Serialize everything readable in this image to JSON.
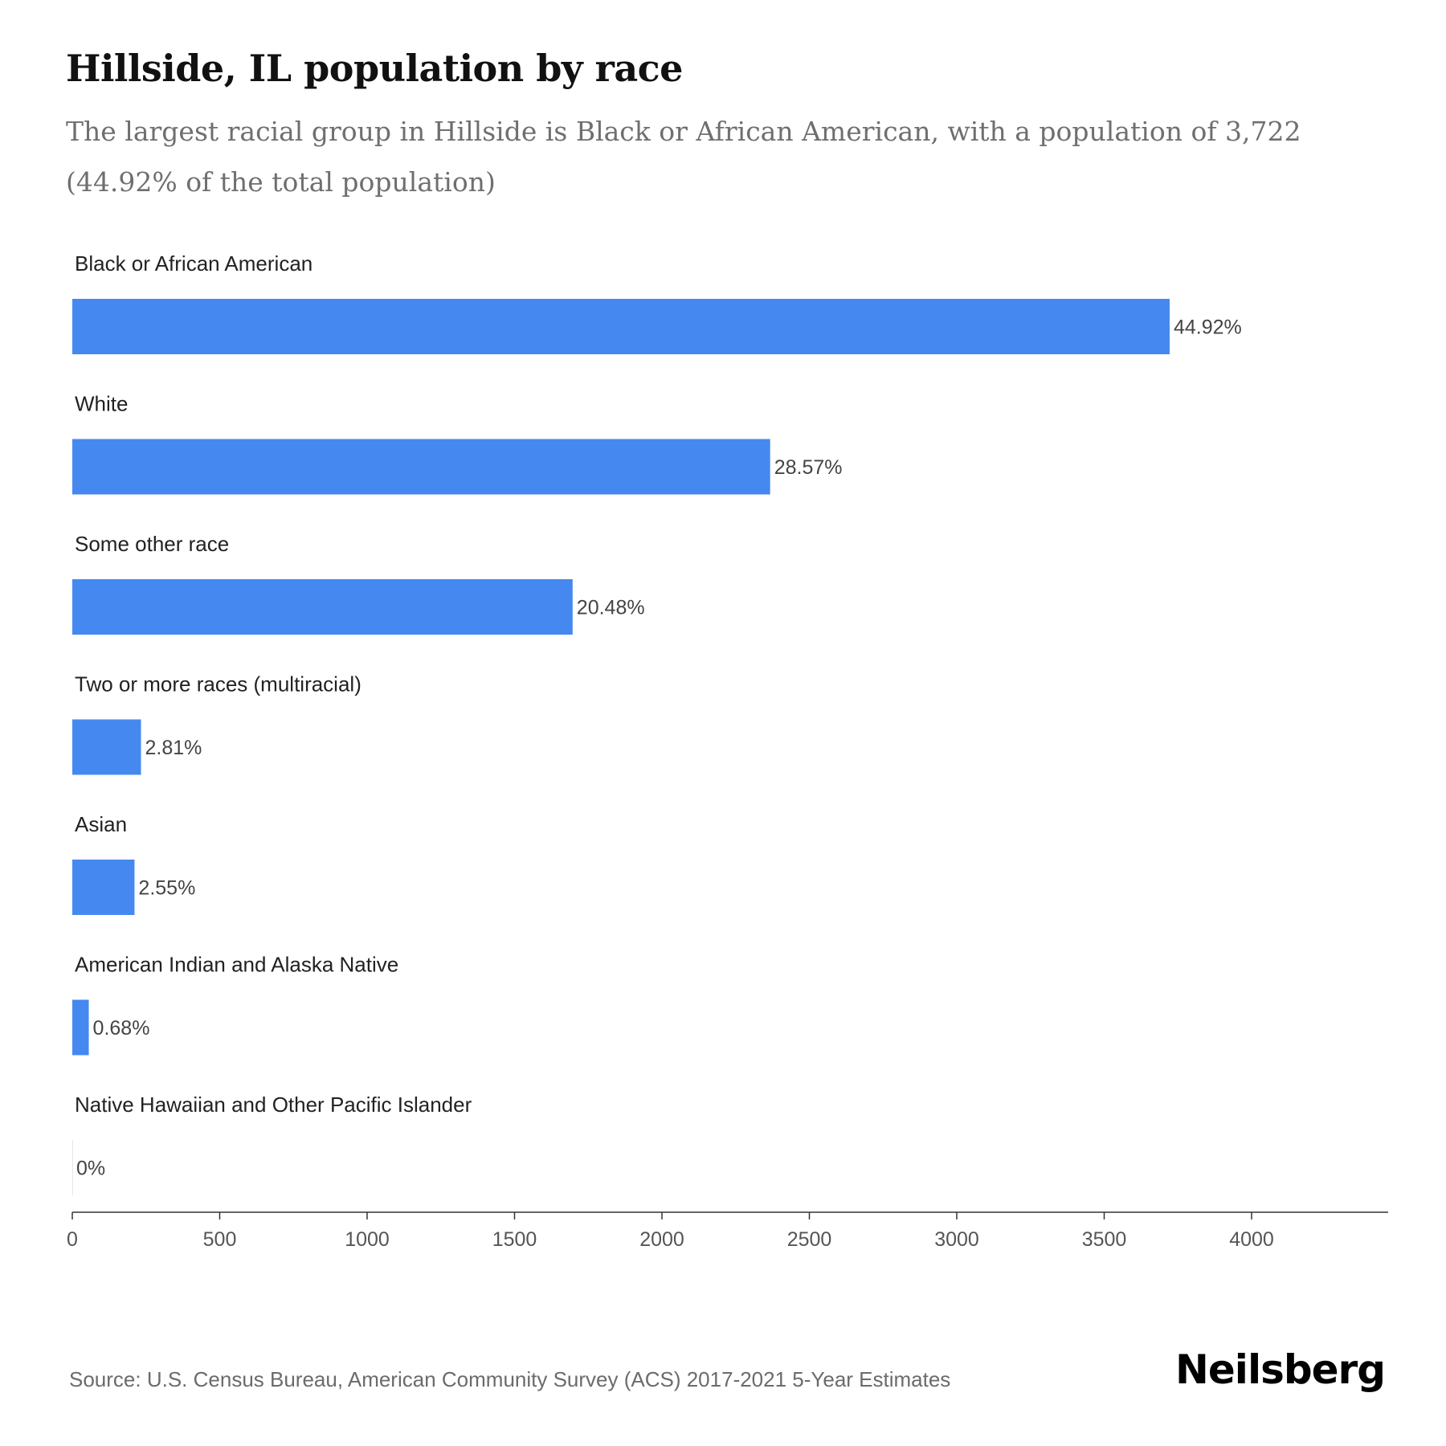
{
  "header": {
    "title": "Hillside, IL population by race",
    "subtitle": "The largest racial group in Hillside is Black or African American, with a population of 3,722 (44.92% of the total population)"
  },
  "chart_data": {
    "type": "bar",
    "orientation": "horizontal",
    "categories": [
      "Black or African American",
      "White",
      "Some other race",
      "Two or more races (multiracial)",
      "Asian",
      "American Indian and Alaska Native",
      "Native Hawaiian and Other Pacific Islander"
    ],
    "values": [
      3722,
      2367,
      1697,
      233,
      211,
      56,
      0
    ],
    "value_labels": [
      "44.92%",
      "28.57%",
      "20.48%",
      "2.81%",
      "2.55%",
      "0.68%",
      "0%"
    ],
    "xticks": [
      "0",
      "500",
      "1000",
      "1500",
      "2000",
      "2500",
      "3000",
      "3500",
      "4000"
    ],
    "xlim": [
      0,
      4470
    ],
    "bar_color": "#4589f0",
    "axis_color": "#333333",
    "label_color": "#222222",
    "value_label_color": "#444444",
    "grid": false
  },
  "footer": {
    "source": "Source: U.S. Census Bureau, American Community Survey (ACS) 2017-2021 5-Year Estimates",
    "brand": "Neilsberg"
  }
}
